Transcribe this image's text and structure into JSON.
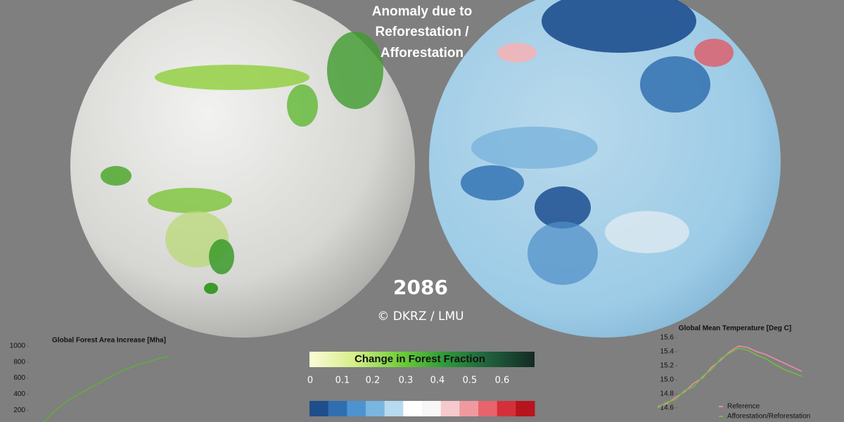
{
  "header": {
    "title_lines": [
      "Anomaly due to",
      "Reforestation /",
      "Afforestation"
    ]
  },
  "year": "2086",
  "credit": "© DKRZ / LMU",
  "forest_colorbar": {
    "label": "Change in Forest Fraction",
    "ticks": [
      0,
      0.1,
      0.2,
      0.3,
      0.4,
      0.5,
      0.6
    ]
  },
  "chart_data": [
    {
      "type": "line",
      "title": "Global Forest Area Increase [Mha]",
      "categories": [
        null,
        null,
        null,
        null,
        null,
        null,
        null,
        null,
        null,
        null,
        null,
        null,
        null,
        null,
        null
      ],
      "values": [
        30,
        150,
        250,
        330,
        400,
        460,
        520,
        580,
        640,
        700,
        740,
        780,
        810,
        850,
        870
      ],
      "color": "#5fae3a",
      "ylim": [
        0,
        1000
      ],
      "yticks": [
        200,
        400,
        600,
        800,
        1000
      ]
    },
    {
      "type": "line",
      "title": "Global Mean Temperature [Deg C]",
      "categories": [
        null,
        null,
        null,
        null,
        null,
        null,
        null,
        null,
        null,
        null,
        null,
        null,
        null,
        null,
        null,
        null,
        null
      ],
      "series": [
        {
          "name": "Reference",
          "color": "#f08aa8",
          "values": [
            14.62,
            14.66,
            14.75,
            14.83,
            14.95,
            15.03,
            15.18,
            15.28,
            15.4,
            15.48,
            15.46,
            15.4,
            15.36,
            15.3,
            15.24,
            15.18,
            15.12
          ]
        },
        {
          "name": "Afforestation/Reforestation",
          "color": "#6fbf3a",
          "values": [
            14.6,
            14.68,
            14.72,
            14.85,
            14.9,
            15.05,
            15.15,
            15.3,
            15.38,
            15.45,
            15.42,
            15.35,
            15.3,
            15.22,
            15.15,
            15.1,
            15.05
          ]
        }
      ],
      "ylim": [
        14.4,
        15.6
      ],
      "yticks": [
        14.6,
        14.8,
        {
          "value": 15,
          "label": "15.0"
        },
        15.2,
        15.4,
        15.6
      ]
    }
  ]
}
